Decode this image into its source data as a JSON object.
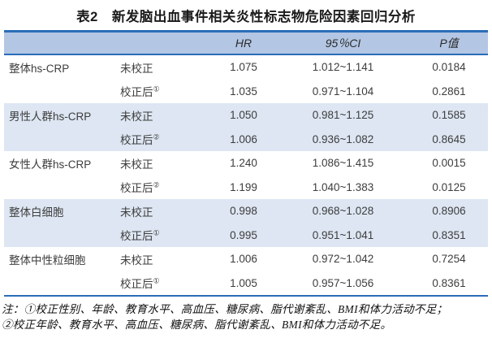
{
  "page": {
    "title": "表2　新发脑出血事件相关炎性标志物危险因素回归分析"
  },
  "table": {
    "headers": {
      "group": "",
      "method": "",
      "hr": "HR",
      "ci": "95％CI",
      "p": "P值"
    },
    "rows": [
      {
        "group": "整体hs-CRP",
        "method": "未校正",
        "sup": "",
        "hr": "1.075",
        "ci": "1.012~1.141",
        "p": "0.0184"
      },
      {
        "group": "",
        "method": "校正后",
        "sup": "①",
        "hr": "1.035",
        "ci": "0.971~1.104",
        "p": "0.2861"
      },
      {
        "group": "男性人群hs-CRP",
        "method": "未校正",
        "sup": "",
        "hr": "1.050",
        "ci": "0.981~1.125",
        "p": "0.1585"
      },
      {
        "group": "",
        "method": "校正后",
        "sup": "②",
        "hr": "1.006",
        "ci": "0.936~1.082",
        "p": "0.8645"
      },
      {
        "group": "女性人群hs-CRP",
        "method": "未校正",
        "sup": "",
        "hr": "1.240",
        "ci": "1.086~1.415",
        "p": "0.0015"
      },
      {
        "group": "",
        "method": "校正后",
        "sup": "②",
        "hr": "1.199",
        "ci": "1.040~1.383",
        "p": "0.0125"
      },
      {
        "group": "整体白细胞",
        "method": "未校正",
        "sup": "",
        "hr": "0.998",
        "ci": "0.968~1.028",
        "p": "0.8906"
      },
      {
        "group": "",
        "method": "校正后",
        "sup": "①",
        "hr": "0.995",
        "ci": "0.951~1.041",
        "p": "0.8351"
      },
      {
        "group": "整体中性粒细胞",
        "method": "未校正",
        "sup": "",
        "hr": "1.006",
        "ci": "0.972~1.042",
        "p": "0.7254"
      },
      {
        "group": "",
        "method": "校正后",
        "sup": "①",
        "hr": "1.005",
        "ci": "0.957~1.056",
        "p": "0.8361"
      }
    ]
  },
  "footnotes": {
    "line1": "注：①校正性别、年龄、教育水平、高血压、糖尿病、脂代谢紊乱、BMI和体力活动不足；",
    "line2": "②校正年龄、教育水平、高血压、糖尿病、脂代谢紊乱、BMI和体力活动不足。"
  },
  "colors": {
    "header_bg": "#b3c6e3",
    "stripe_bg": "#dde6f2",
    "border_blue": "#2a6db8",
    "text": "#3d3d3d"
  }
}
